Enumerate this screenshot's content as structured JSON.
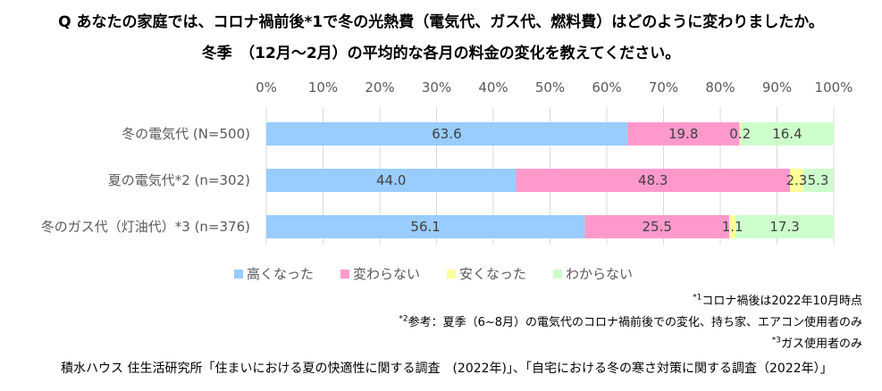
{
  "title_line1": "Q あなたの家庭では、コロナ禍前後*1で冬の光熱費（電気代、ガス代、燃料費）はどのように変わりましたか。",
  "title_line2": "冬季　（12月～2月）の平均的な各月の料金の変化を教えてください。",
  "chart_data": {
    "type": "bar",
    "orientation": "horizontal",
    "stacked": true,
    "percent": true,
    "title": "Q あなたの家庭では、コロナ禍前後*1で冬の光熱費（電気代、ガス代、燃料費）はどのように変わりましたか。 冬季　（12月～2月）の平均的な各月の料金の変化を教えてください。",
    "xlabel": "",
    "ylabel": "",
    "xlim": [
      0,
      100
    ],
    "x_ticks": [
      "0%",
      "10%",
      "20%",
      "30%",
      "40%",
      "50%",
      "60%",
      "70%",
      "80%",
      "90%",
      "100%"
    ],
    "grid": true,
    "legend_position": "bottom",
    "categories": [
      "冬の電気代 (N=500)",
      "夏の電気代*2 (n=302)",
      "冬のガス代（灯油代）*3 (n=376)"
    ],
    "series": [
      {
        "name": "高くなった",
        "color": "#99CCFF",
        "values": [
          63.6,
          44.0,
          56.1
        ],
        "labels": [
          "63.6",
          "44.0",
          "56.1"
        ]
      },
      {
        "name": "変わらない",
        "color": "#FF99CC",
        "values": [
          19.8,
          48.3,
          25.5
        ],
        "labels": [
          "19.8",
          "48.3",
          "25.5"
        ]
      },
      {
        "name": "安くなった",
        "color": "#FFFF99",
        "values": [
          0.2,
          2.3,
          1.1
        ],
        "labels": [
          "0.2",
          "2.3",
          "1.1"
        ]
      },
      {
        "name": "わからない",
        "color": "#CCFFCC",
        "values": [
          16.4,
          5.3,
          17.3
        ],
        "labels": [
          "16.4",
          "5.3",
          "17.3"
        ]
      }
    ]
  },
  "notes": {
    "note1_mark": "*1",
    "note1_text": "コロナ禍後は2022年10月時点",
    "note2_mark": "*2",
    "note2_text": "参考：夏季（6~8月）の電気代のコロナ禍前後での変化、持ち家、エアコン使用者のみ",
    "note3_mark": "*3",
    "note3_text": "ガス使用者のみ"
  },
  "source": "積水ハウス 住生活研究所「住まいにおける夏の快適性に関する調査　(2022年)」、「自宅における冬の寒さ対策に関する調査（2022年）」"
}
